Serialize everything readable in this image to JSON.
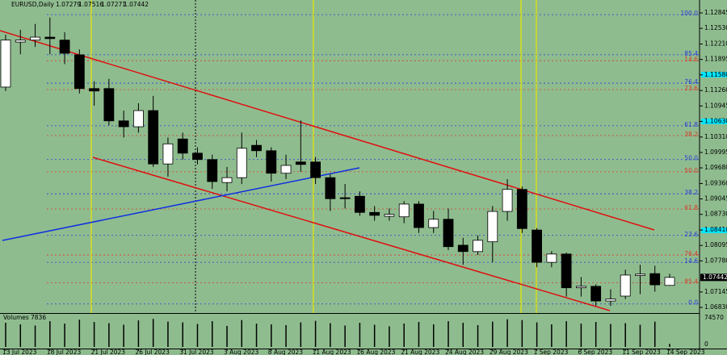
{
  "chart_data": {
    "type": "candlestick",
    "title": "EURUSD,Daily",
    "categories": [
      "13 Jul 2023",
      null,
      null,
      "18 Jul 2023",
      null,
      null,
      "21 Jul 2023",
      null,
      null,
      "26 Jul 2023",
      null,
      null,
      "31 Jul 2023",
      null,
      null,
      "3 Aug 2023",
      null,
      null,
      "8 Aug 2023",
      null,
      null,
      "11 Aug 2023",
      null,
      null,
      "16 Aug 2023",
      null,
      null,
      "21 Aug 2023",
      null,
      null,
      "24 Aug 2023",
      null,
      null,
      "29 Aug 2023",
      null,
      null,
      "1 Sep 2023",
      null,
      null,
      "6 Sep 2023",
      null,
      null,
      "11 Sep 2023",
      null,
      null,
      "14 Sep 2023"
    ],
    "open": [
      1.1133,
      1.1225,
      1.1229,
      1.1235,
      1.1229,
      1.1199,
      1.113,
      1.113,
      1.1064,
      1.1052,
      1.1085,
      1.0976,
      1.1027,
      1.0998,
      1.0985,
      1.0938,
      1.0948,
      1.1014,
      1.1003,
      1.0957,
      1.098,
      1.098,
      1.0948,
      1.0907,
      1.091,
      1.0877,
      1.0869,
      1.0868,
      1.0894,
      1.0846,
      1.0863,
      1.081,
      1.0797,
      1.0817,
      1.0879,
      1.0924,
      1.0841,
      1.0775,
      1.0792,
      1.0723,
      1.0726,
      1.0696,
      1.0706,
      1.0748,
      1.0752,
      1.07279
    ],
    "high": [
      1.124,
      1.125,
      1.1262,
      1.1275,
      1.1245,
      1.121,
      1.1145,
      1.115,
      1.1085,
      1.11,
      1.1115,
      1.103,
      1.104,
      1.101,
      1.0995,
      1.097,
      1.104,
      1.1025,
      1.101,
      1.0995,
      1.1065,
      1.099,
      1.0955,
      1.0935,
      1.092,
      1.089,
      1.0885,
      1.09,
      1.09,
      1.088,
      1.0885,
      1.0825,
      1.083,
      1.089,
      1.0945,
      1.093,
      1.0845,
      1.0798,
      1.0795,
      1.0745,
      1.073,
      1.072,
      1.076,
      1.077,
      1.0768,
      1.07516
    ],
    "low": [
      1.1125,
      1.12,
      1.1215,
      1.12,
      1.118,
      1.112,
      1.1095,
      1.1055,
      1.103,
      1.104,
      1.097,
      1.095,
      1.0985,
      1.0975,
      1.0925,
      1.092,
      1.0935,
      1.099,
      1.094,
      1.0945,
      1.096,
      1.0935,
      1.088,
      1.0885,
      1.087,
      1.086,
      1.086,
      1.0855,
      1.0835,
      1.0835,
      1.08,
      1.077,
      1.079,
      1.0775,
      1.086,
      1.0835,
      1.0765,
      1.0765,
      1.0705,
      1.0705,
      1.0686,
      1.0686,
      1.07,
      1.071,
      1.0715,
      1.07271
    ],
    "close": [
      1.1229,
      1.1229,
      1.1235,
      1.1232,
      1.1202,
      1.113,
      1.1125,
      1.1064,
      1.1052,
      1.1085,
      1.0976,
      1.1017,
      1.0998,
      1.0985,
      1.094,
      1.0948,
      1.1008,
      1.1003,
      1.0957,
      1.0973,
      1.0975,
      1.0948,
      1.0905,
      1.0905,
      1.0877,
      1.0871,
      1.0873,
      1.0894,
      1.0846,
      1.0863,
      1.0807,
      1.0797,
      1.082,
      1.0879,
      1.0924,
      1.0844,
      1.0775,
      1.0792,
      1.0723,
      1.0726,
      1.0696,
      1.07,
      1.0749,
      1.0751,
      1.0729,
      1.07442
    ],
    "ylim": [
      1.06714,
      1.13109
    ],
    "yticks": [
      1.12845,
      {
        "value": 1.1253,
        "label": "1.12530"
      },
      {
        "value": 1.1221,
        "label": "1.12210"
      },
      1.11895,
      {
        "value": 1.1158,
        "label": "1.11580"
      },
      {
        "value": 1.1126,
        "label": "1.11260"
      },
      1.10945,
      {
        "value": 1.1063,
        "label": "1.10630"
      },
      {
        "value": 1.1031,
        "label": "1.10310"
      },
      1.09995,
      {
        "value": 1.0968,
        "label": "1.09680"
      },
      {
        "value": 1.0936,
        "label": "1.09360"
      },
      1.09045,
      {
        "value": 1.0873,
        "label": "1.08730"
      },
      {
        "value": 1.0841,
        "label": "1.08410"
      },
      1.08095,
      {
        "value": 1.0778,
        "label": "1.07780"
      },
      1.07145,
      {
        "value": 1.0683,
        "label": "1.06830"
      }
    ],
    "fib_levels": [
      {
        "label": "100.0",
        "price": 1.1281,
        "color": "#2a3bd8"
      },
      {
        "label": "85.4",
        "price": 1.1199,
        "color": "#2a3bd8"
      },
      {
        "label": "14.6",
        "price": 1.1187,
        "color": "#d83a2a"
      },
      {
        "label": "76.4",
        "price": 1.1141,
        "color": "#2a3bd8"
      },
      {
        "label": "23.6",
        "price": 1.1128,
        "color": "#d83a2a"
      },
      {
        "label": "61.8",
        "price": 1.1054,
        "color": "#2a3bd8"
      },
      {
        "label": "38.2",
        "price": 1.1034,
        "color": "#d83a2a"
      },
      {
        "label": "50.0",
        "price": 1.0985,
        "color": "#2a3bd8"
      },
      {
        "label": "50.0",
        "price": 1.096,
        "color": "#d83a2a"
      },
      {
        "label": "38.2",
        "price": 1.0915,
        "color": "#2a3bd8"
      },
      {
        "label": "61.8",
        "price": 1.0884,
        "color": "#d83a2a"
      },
      {
        "label": "23.6",
        "price": 1.083,
        "color": "#2a3bd8"
      },
      {
        "label": "76.4",
        "price": 1.079,
        "color": "#d83a2a"
      },
      {
        "label": "14.6",
        "price": 1.0775,
        "color": "#2a3bd8"
      },
      {
        "label": "85.4",
        "price": 1.0733,
        "color": "#d83a2a"
      },
      {
        "label": "0.0",
        "price": 1.069,
        "color": "#2a3bd8"
      }
    ],
    "volume": {
      "label": "Volumes",
      "values": [
        62000,
        58000,
        55000,
        66000,
        60000,
        70000,
        64000,
        61000,
        57000,
        68000,
        72000,
        65000,
        63000,
        59000,
        66000,
        54000,
        69000,
        60000,
        58000,
        56000,
        63000,
        67000,
        61000,
        55000,
        62000,
        57000,
        53000,
        60000,
        64000,
        58000,
        66000,
        62000,
        56000,
        65000,
        71000,
        69000,
        63000,
        58000,
        66000,
        60000,
        64000,
        59000,
        61000,
        57000,
        65000,
        7836
      ],
      "ylim": [
        0,
        74570
      ],
      "yticks": [
        74570,
        0
      ]
    }
  }
}
